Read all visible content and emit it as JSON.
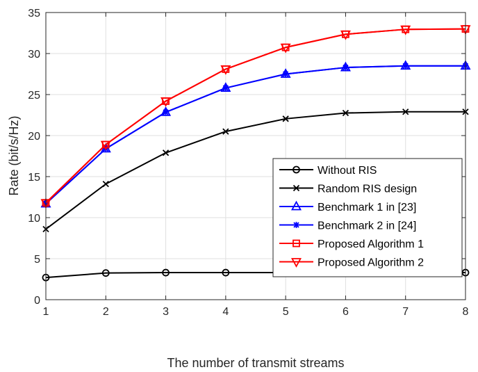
{
  "chart_data": {
    "type": "line",
    "title": "",
    "xlabel": "The number of transmit streams",
    "ylabel": "Rate (bit/s/Hz)",
    "xlim": [
      1,
      8
    ],
    "ylim": [
      0,
      35
    ],
    "x": [
      1,
      2,
      3,
      4,
      5,
      6,
      7,
      8
    ],
    "xticks": [
      "1",
      "2",
      "3",
      "4",
      "5",
      "6",
      "7",
      "8"
    ],
    "yticks": [
      "0",
      "5",
      "10",
      "15",
      "20",
      "25",
      "30",
      "35"
    ],
    "grid": true,
    "legend_position": "lower-right",
    "series": [
      {
        "name": "Without RIS",
        "color": "#000000",
        "marker": "circle",
        "values": [
          2.7,
          3.25,
          3.3,
          3.3,
          3.3,
          3.3,
          3.3,
          3.3
        ]
      },
      {
        "name": "Random RIS design",
        "color": "#000000",
        "marker": "x",
        "values": [
          8.6,
          14.1,
          17.9,
          20.5,
          22.05,
          22.75,
          22.9,
          22.9
        ]
      },
      {
        "name": "Benchmark 1 in [23]",
        "color": "#0000ff",
        "marker": "triangle-up",
        "values": [
          11.7,
          18.4,
          22.85,
          25.8,
          27.5,
          28.3,
          28.5,
          28.5
        ]
      },
      {
        "name": "Benchmark 2 in [24]",
        "color": "#0000ff",
        "marker": "asterisk",
        "values": [
          11.7,
          18.4,
          22.85,
          25.8,
          27.5,
          28.3,
          28.5,
          28.5
        ]
      },
      {
        "name": "Proposed Algorithm 1",
        "color": "#ff0000",
        "marker": "square",
        "values": [
          11.8,
          18.9,
          24.2,
          28.1,
          30.75,
          32.35,
          32.95,
          33.0
        ]
      },
      {
        "name": "Proposed Algorithm 2",
        "color": "#ff0000",
        "marker": "triangle-down",
        "values": [
          11.8,
          18.9,
          24.2,
          28.1,
          30.75,
          32.35,
          32.95,
          33.0
        ]
      }
    ]
  }
}
